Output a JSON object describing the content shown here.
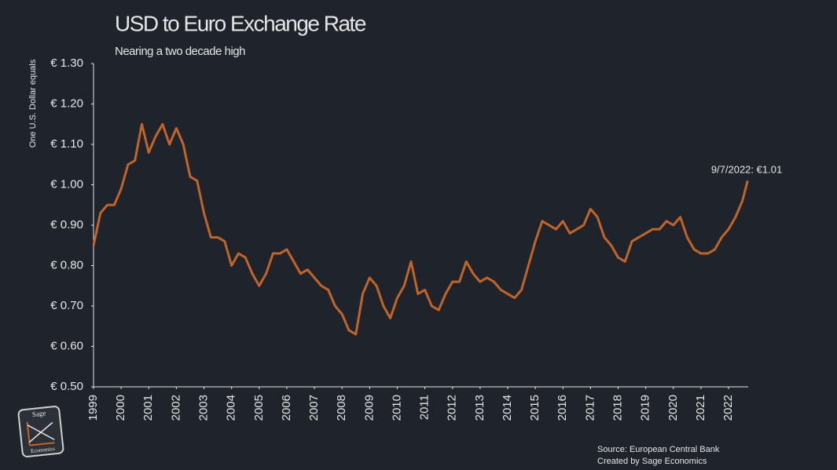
{
  "chart_data": {
    "type": "line",
    "title": "USD to Euro Exchange Rate",
    "subtitle": "Nearing a two decade high",
    "y_axis_label": "One U.S. Dollar equals",
    "annotation": "9/7/2022: €1.01",
    "source": "Source: European Central Bank",
    "credit": "Created by Sage Economics",
    "logo": {
      "top": "Sage",
      "bottom": "Economics"
    },
    "xlim": [
      1999,
      2022.71
    ],
    "xticks": [
      1999,
      2000,
      2001,
      2002,
      2003,
      2004,
      2005,
      2006,
      2007,
      2008,
      2009,
      2010,
      2011,
      2012,
      2013,
      2014,
      2015,
      2016,
      2017,
      2018,
      2019,
      2020,
      2021,
      2022
    ],
    "ylim": [
      0.5,
      1.3
    ],
    "yticks": [
      {
        "value": 0.5,
        "label": "€ 0.50"
      },
      {
        "value": 0.6,
        "label": "€ 0.60"
      },
      {
        "value": 0.7,
        "label": "€ 0.70"
      },
      {
        "value": 0.8,
        "label": "€ 0.80"
      },
      {
        "value": 0.9,
        "label": "€ 0.90"
      },
      {
        "value": 1.0,
        "label": "€ 1.00"
      },
      {
        "value": 1.1,
        "label": "€ 1.10"
      },
      {
        "value": 1.2,
        "label": "€ 1.20"
      },
      {
        "value": 1.3,
        "label": "€ 1.30"
      }
    ],
    "x": [
      1999,
      1999.25,
      1999.5,
      1999.75,
      2000,
      2000.25,
      2000.5,
      2000.75,
      2001,
      2001.25,
      2001.5,
      2001.75,
      2002,
      2002.25,
      2002.5,
      2002.75,
      2003,
      2003.25,
      2003.5,
      2003.75,
      2004,
      2004.25,
      2004.5,
      2004.75,
      2005,
      2005.25,
      2005.5,
      2005.75,
      2006,
      2006.25,
      2006.5,
      2006.75,
      2007,
      2007.25,
      2007.5,
      2007.75,
      2008,
      2008.25,
      2008.5,
      2008.75,
      2009,
      2009.25,
      2009.5,
      2009.75,
      2010,
      2010.25,
      2010.5,
      2010.75,
      2011,
      2011.25,
      2011.5,
      2011.75,
      2012,
      2012.25,
      2012.5,
      2012.75,
      2013,
      2013.25,
      2013.5,
      2013.75,
      2014,
      2014.25,
      2014.5,
      2014.75,
      2015,
      2015.25,
      2015.5,
      2015.75,
      2016,
      2016.25,
      2016.5,
      2016.75,
      2017,
      2017.25,
      2017.5,
      2017.75,
      2018,
      2018.25,
      2018.5,
      2018.75,
      2019,
      2019.25,
      2019.5,
      2019.75,
      2020,
      2020.25,
      2020.5,
      2020.75,
      2021,
      2021.25,
      2021.5,
      2021.75,
      2022,
      2022.25,
      2022.5,
      2022.69
    ],
    "series": [
      {
        "name": "USD to Euro",
        "color": "#c0642a",
        "values": [
          0.85,
          0.93,
          0.95,
          0.95,
          0.99,
          1.05,
          1.06,
          1.15,
          1.08,
          1.12,
          1.15,
          1.1,
          1.14,
          1.1,
          1.02,
          1.01,
          0.93,
          0.87,
          0.87,
          0.86,
          0.8,
          0.83,
          0.82,
          0.78,
          0.75,
          0.78,
          0.83,
          0.83,
          0.84,
          0.81,
          0.78,
          0.79,
          0.77,
          0.75,
          0.74,
          0.7,
          0.68,
          0.64,
          0.63,
          0.73,
          0.77,
          0.75,
          0.7,
          0.67,
          0.72,
          0.75,
          0.81,
          0.73,
          0.74,
          0.7,
          0.69,
          0.73,
          0.76,
          0.76,
          0.81,
          0.78,
          0.76,
          0.77,
          0.76,
          0.74,
          0.73,
          0.72,
          0.74,
          0.8,
          0.86,
          0.91,
          0.9,
          0.89,
          0.91,
          0.88,
          0.89,
          0.9,
          0.94,
          0.92,
          0.87,
          0.85,
          0.82,
          0.81,
          0.86,
          0.87,
          0.88,
          0.89,
          0.89,
          0.91,
          0.9,
          0.92,
          0.87,
          0.84,
          0.83,
          0.83,
          0.84,
          0.87,
          0.89,
          0.92,
          0.96,
          1.01
        ]
      }
    ]
  }
}
